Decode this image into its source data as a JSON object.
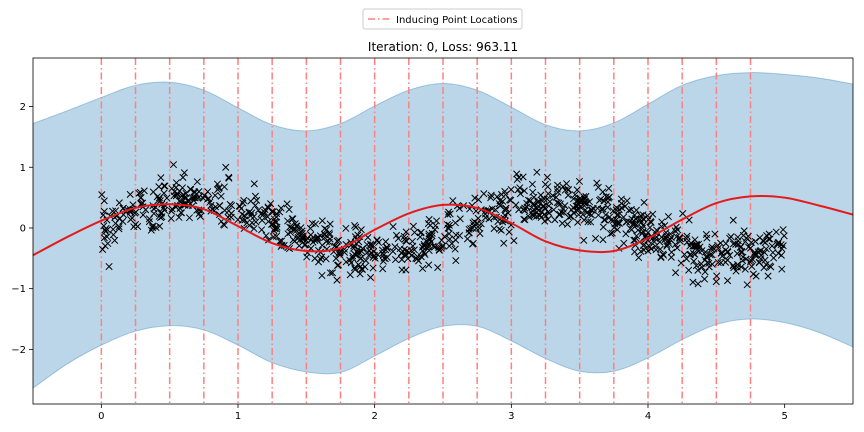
{
  "chart_data": {
    "type": "scatter",
    "title": "Iteration: 0, Loss: 963.11",
    "xlabel": "",
    "ylabel": "",
    "xlim": [
      -0.5,
      5.5
    ],
    "ylim": [
      -2.9,
      2.8
    ],
    "x_ticks": [
      0,
      1,
      2,
      3,
      4,
      5
    ],
    "y_ticks": [
      -2,
      -1,
      0,
      1,
      2
    ],
    "grid": false,
    "legend": {
      "position": "top-center",
      "entries": [
        "Inducing Point Locations"
      ]
    },
    "inducing_points": [
      0,
      0.25,
      0.5,
      0.75,
      1,
      1.25,
      1.5,
      1.75,
      2,
      2.25,
      2.5,
      2.75,
      3,
      3.25,
      3.5,
      3.75,
      4,
      4.25,
      4.5,
      4.75
    ],
    "mean_curve": {
      "color": "#e41a1c",
      "x": [
        -0.5,
        -0.25,
        0,
        0.25,
        0.5,
        0.75,
        1,
        1.25,
        1.5,
        1.75,
        2,
        2.25,
        2.5,
        2.75,
        3,
        3.25,
        3.5,
        3.75,
        4,
        4.25,
        4.5,
        4.75,
        5,
        5.25,
        5.5
      ],
      "y": [
        -0.45,
        -0.15,
        0.12,
        0.33,
        0.39,
        0.31,
        0.03,
        -0.25,
        -0.38,
        -0.33,
        -0.03,
        0.24,
        0.38,
        0.33,
        0.08,
        -0.22,
        -0.37,
        -0.38,
        -0.17,
        0.14,
        0.41,
        0.52,
        0.5,
        0.37,
        0.22
      ]
    },
    "confidence_band": {
      "color": "#1f77b4",
      "x": [
        -0.5,
        -0.25,
        0,
        0.25,
        0.5,
        0.75,
        1,
        1.25,
        1.5,
        1.75,
        2,
        2.25,
        2.5,
        2.75,
        3,
        3.25,
        3.5,
        3.75,
        4,
        4.25,
        4.5,
        4.75,
        5,
        5.25,
        5.5
      ],
      "upper": [
        1.72,
        1.93,
        2.15,
        2.35,
        2.4,
        2.27,
        1.98,
        1.7,
        1.6,
        1.72,
        2.01,
        2.27,
        2.38,
        2.27,
        1.99,
        1.7,
        1.6,
        1.73,
        2.04,
        2.35,
        2.51,
        2.56,
        2.53,
        2.47,
        2.37
      ],
      "lower": [
        -2.64,
        -2.24,
        -1.93,
        -1.7,
        -1.61,
        -1.68,
        -1.93,
        -2.22,
        -2.37,
        -2.38,
        -2.11,
        -1.82,
        -1.62,
        -1.62,
        -1.86,
        -2.15,
        -2.36,
        -2.36,
        -2.14,
        -1.84,
        -1.59,
        -1.5,
        -1.56,
        -1.72,
        -1.96
      ]
    },
    "observations": {
      "marker": "x",
      "color": "#000000",
      "count": 1000,
      "x_range": [
        0,
        5
      ],
      "function": "sin(2.4x)*0.45 + noise",
      "noise_std": 0.2
    }
  }
}
